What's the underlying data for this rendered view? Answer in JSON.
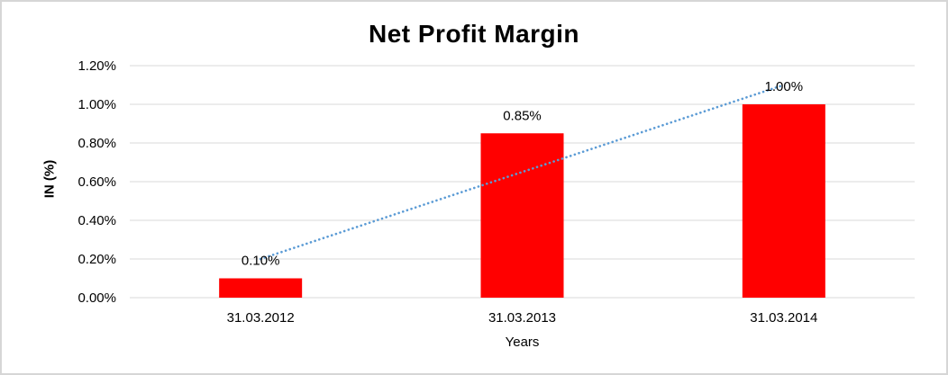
{
  "chart_data": {
    "type": "bar",
    "title": "Net Profit Margin",
    "xlabel": "Years",
    "ylabel": "IN (%)",
    "categories": [
      "31.03.2012",
      "31.03.2013",
      "31.03.2014"
    ],
    "values": [
      0.1,
      0.85,
      1.0
    ],
    "value_labels": [
      "0.10%",
      "0.85%",
      "1.00%"
    ],
    "ytick_values": [
      0,
      0.2,
      0.4,
      0.6,
      0.8,
      1.0,
      1.2
    ],
    "ytick_labels": [
      "0.00%",
      "0.20%",
      "0.40%",
      "0.60%",
      "0.80%",
      "1.00%",
      "1.20%"
    ],
    "ylim": [
      0,
      1.2
    ],
    "grid": true,
    "legend": false,
    "bar_color": "#ff0000",
    "gridline_color": "#d9d9d9",
    "text_color": "#000000",
    "trendline": {
      "type": "linear",
      "style": "dotted",
      "color": "#5b9bd5",
      "start_value": 0.2,
      "end_value": 1.1
    }
  }
}
